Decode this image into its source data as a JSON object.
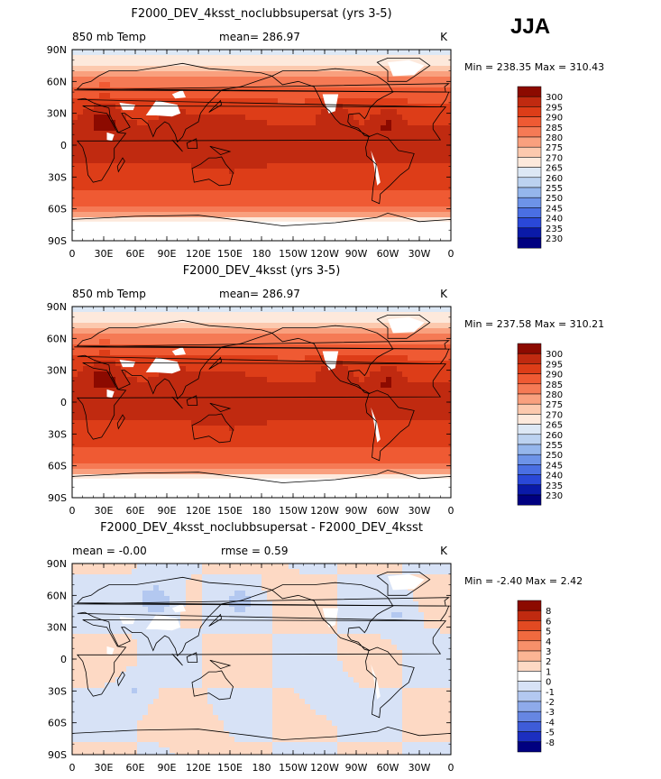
{
  "season": "JJA",
  "chart_data": [
    {
      "type": "heatmap",
      "title": "F2000_DEV_4ksst_noclubbsupersat (yrs 3-5)",
      "left_label": "850 mb Temp",
      "center_label": "mean= 286.97",
      "units": "K",
      "stats_text": "Min = 238.35 Max = 310.43",
      "min": 238.35,
      "max": 310.43,
      "mean": 286.97,
      "xticks": [
        "0",
        "30E",
        "60E",
        "90E",
        "120E",
        "150E",
        "180",
        "150W",
        "120W",
        "90W",
        "60W",
        "30W",
        "0"
      ],
      "yticks": [
        "90N",
        "60N",
        "30N",
        "0",
        "30S",
        "60S",
        "90S"
      ],
      "xlim": [
        0,
        360
      ],
      "ylim": [
        -90,
        90
      ],
      "levels": [
        "300",
        "295",
        "290",
        "285",
        "280",
        "275",
        "270",
        "265",
        "260",
        "255",
        "250",
        "245",
        "240",
        "235",
        "230"
      ],
      "colors": [
        "#8c0a00",
        "#c02a10",
        "#dd3d18",
        "#ef5a33",
        "#f57a55",
        "#f9a07e",
        "#fcc9ae",
        "#fde9dc",
        "#dde8f5",
        "#bcd2f0",
        "#95b6ec",
        "#6d93e8",
        "#4a6fe3",
        "#2a48d8",
        "#0a1aa8",
        "#000080"
      ]
    },
    {
      "type": "heatmap",
      "title": "F2000_DEV_4ksst (yrs 3-5)",
      "left_label": "850 mb Temp",
      "center_label": "mean= 286.97",
      "units": "K",
      "stats_text": "Min = 237.58 Max = 310.21",
      "min": 237.58,
      "max": 310.21,
      "mean": 286.97,
      "xticks": [
        "0",
        "30E",
        "60E",
        "90E",
        "120E",
        "150E",
        "180",
        "150W",
        "120W",
        "90W",
        "60W",
        "30W",
        "0"
      ],
      "yticks": [
        "90N",
        "60N",
        "30N",
        "0",
        "30S",
        "60S",
        "90S"
      ],
      "xlim": [
        0,
        360
      ],
      "ylim": [
        -90,
        90
      ],
      "levels": [
        "300",
        "295",
        "290",
        "285",
        "280",
        "275",
        "270",
        "265",
        "260",
        "255",
        "250",
        "245",
        "240",
        "235",
        "230"
      ],
      "colors": [
        "#8c0a00",
        "#c02a10",
        "#dd3d18",
        "#ef5a33",
        "#f57a55",
        "#f9a07e",
        "#fcc9ae",
        "#fde9dc",
        "#dde8f5",
        "#bcd2f0",
        "#95b6ec",
        "#6d93e8",
        "#4a6fe3",
        "#2a48d8",
        "#0a1aa8",
        "#000080"
      ]
    },
    {
      "type": "heatmap",
      "title": "F2000_DEV_4ksst_noclubbsupersat - F2000_DEV_4ksst",
      "left_label": "mean = -0.00",
      "center_label": "rmse = 0.59",
      "units": "K",
      "stats_text": "Min = -2.40 Max = 2.42",
      "min": -2.4,
      "max": 2.42,
      "mean": -0.0,
      "rmse": 0.59,
      "xticks": [
        "0",
        "30E",
        "60E",
        "90E",
        "120E",
        "150E",
        "180",
        "150W",
        "120W",
        "90W",
        "60W",
        "30W",
        "0"
      ],
      "yticks": [
        "90N",
        "60N",
        "30N",
        "0",
        "30S",
        "60S",
        "90S"
      ],
      "xlim": [
        0,
        360
      ],
      "ylim": [
        -90,
        90
      ],
      "levels": [
        "8",
        "6",
        "5",
        "4",
        "3",
        "2",
        "1",
        "0",
        "-1",
        "-2",
        "-3",
        "-4",
        "-5",
        "-8"
      ],
      "colors": [
        "#8c0a00",
        "#c02a10",
        "#e24a22",
        "#f06a3f",
        "#f7906a",
        "#fbb594",
        "#fdd9c4",
        "#ffffff",
        "#d7e2f6",
        "#b3c8f0",
        "#8eaaea",
        "#6686e2",
        "#3e5cd8",
        "#1c2fc0",
        "#000080"
      ]
    }
  ]
}
